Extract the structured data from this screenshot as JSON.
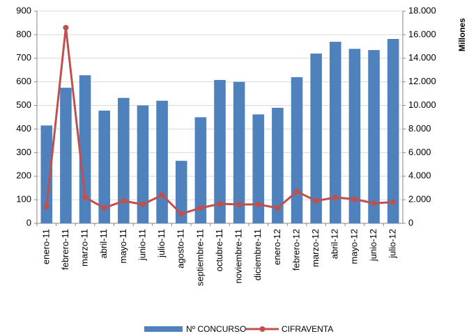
{
  "chart_data": {
    "type": "bar_line",
    "categories": [
      "enero-11",
      "febrero-11",
      "marzo-11",
      "abril-11",
      "mayo-11",
      "junio-11",
      "julio-11",
      "agosto-11",
      "septiembre-11",
      "octubre-11",
      "noviembre-11",
      "diciembre-11",
      "enero-12",
      "febrero-12",
      "marzo-12",
      "abril-12",
      "mayo-12",
      "junio-12",
      "julio-12"
    ],
    "series": [
      {
        "name": "Nº CONCURSO",
        "type": "bar",
        "color": "#4f81bd",
        "values": [
          415,
          575,
          628,
          478,
          532,
          500,
          520,
          265,
          450,
          608,
          600,
          462,
          490,
          620,
          720,
          770,
          740,
          735,
          782
        ]
      },
      {
        "name": "CIFRAVENTA",
        "type": "line",
        "color": "#c0504d",
        "axis": "y2",
        "values": [
          1400,
          16600,
          2200,
          1300,
          1900,
          1600,
          2400,
          800,
          1300,
          1650,
          1600,
          1600,
          1300,
          2700,
          1900,
          2200,
          2050,
          1700,
          1800
        ]
      }
    ],
    "ylim": [
      0,
      900
    ],
    "yticks": [
      0,
      100,
      200,
      300,
      400,
      500,
      600,
      700,
      800,
      900
    ],
    "y2lim": [
      0,
      18000
    ],
    "y2ticks": [
      0,
      {
        "value": 2000,
        "label": "2.000"
      },
      {
        "value": 4000,
        "label": "4.000"
      },
      {
        "value": 6000,
        "label": "6.000"
      },
      {
        "value": 8000,
        "label": "8.000"
      },
      {
        "value": 10000,
        "label": "10.000"
      },
      {
        "value": 12000,
        "label": "12.000"
      },
      {
        "value": 14000,
        "label": "14.000"
      },
      {
        "value": 16000,
        "label": "16.000"
      },
      {
        "value": 18000,
        "label": "18.000"
      }
    ],
    "y2label": "Millones",
    "grid": true,
    "legend": "bottom"
  }
}
